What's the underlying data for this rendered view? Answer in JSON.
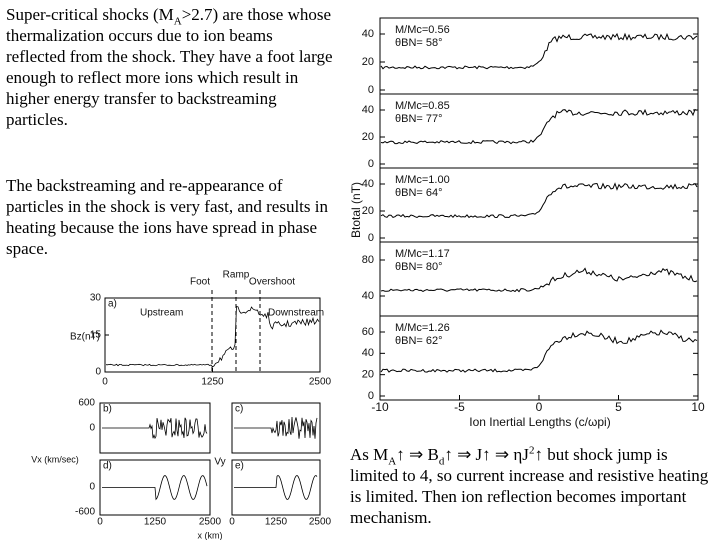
{
  "text_left": {
    "paragraph_1": [
      "Super-critical shocks (M",
      "A",
      ">2.7) are those whose thermalization occurs due to ion beams reflected from the shock. They have a foot large enough to reflect more ions which result in higher energy transfer to backstreaming particles."
    ],
    "paragraph_2": "The backstreaming and re-appearance of particles in the shock is very fast, and results in heating because the ions have spread in phase space."
  },
  "text_right": [
    "As M",
    "A",
    "↑ ⇒ B",
    "d",
    "↑ ⇒ J↑ ⇒ ηJ",
    "2",
    "↑ but shock jump is limited to 4, so current increase and resistive heating is limited. Then ion reflection becomes important mechanism."
  ],
  "figure_right": {
    "y_label": "Btotal (nT)",
    "x_label": "Ion Inertial Lengths (c/ωpi)",
    "xticks": [
      "-10",
      "-5",
      "0",
      "5",
      "10"
    ],
    "panels": [
      {
        "mach": "M/Mc=0.56",
        "theta": "θBN= 58°",
        "yticks": [
          "0",
          "20",
          "40"
        ]
      },
      {
        "mach": "M/Mc=0.85",
        "theta": "θBN= 77°",
        "yticks": [
          "0",
          "20",
          "40"
        ]
      },
      {
        "mach": "M/Mc=1.00",
        "theta": "θBN= 64°",
        "yticks": [
          "0",
          "20",
          "40"
        ]
      },
      {
        "mach": "M/Mc=1.17",
        "theta": "θBN= 80°",
        "yticks": [
          "40",
          "80"
        ]
      },
      {
        "mach": "M/Mc=1.26",
        "theta": "θBN= 62°",
        "yticks": [
          "0",
          "20",
          "40",
          "60"
        ]
      }
    ]
  },
  "figure_left": {
    "panel_a": {
      "tag": "a)",
      "foot": "Foot",
      "ramp": "Ramp",
      "overshoot": "Overshoot",
      "upstream": "Upstream",
      "downstream": "Downstream",
      "y_label": "Bz(nT)",
      "yticks": [
        "0",
        "15",
        "30"
      ],
      "xticks": [
        "0",
        "1250",
        "2500"
      ]
    },
    "tags": [
      "b)",
      "c)",
      "d)",
      "e)"
    ],
    "vx_label": "Vx (km/sec)",
    "vy_label": "Vy",
    "vticks": [
      "600",
      "0",
      "-600"
    ],
    "xticks": [
      "0",
      "1250",
      "2500"
    ],
    "x_label": "x (km)"
  }
}
